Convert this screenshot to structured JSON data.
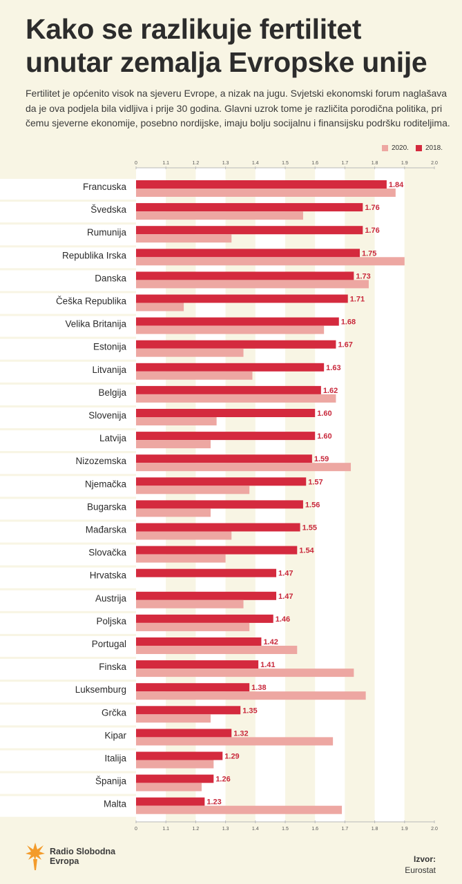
{
  "header": {
    "title_line1": "Kako se razlikuje fertilitet",
    "title_line2": "unutar zemalja Evropske unije",
    "subtitle": "Fertilitet je općenito visok na sjeveru Evrope, a nizak na jugu. Svjetski ekonomski forum naglašava da je ova podjela bila vidljiva i prije 30 godina. Glavni uzrok tome je različita porodična politika, pri čemu sjeverne ekonomije, posebno nordijske, imaju bolju socijalnu i finansijsku podršku roditeljima."
  },
  "legend": {
    "items": [
      {
        "label": "2020.",
        "color": "#eda7a2"
      },
      {
        "label": "2018.",
        "color": "#d42a3e"
      }
    ]
  },
  "footer": {
    "logo_line1": "Radio Slobodna",
    "logo_line2": "Evropa",
    "logo_color": "#f39b2b",
    "source_label": "Izvor:",
    "source_value": "Eurostat"
  },
  "chart_data": {
    "type": "bar",
    "orientation": "horizontal",
    "xlim": [
      1.0,
      2.0
    ],
    "x_ticks": [
      "0",
      "1.1",
      "1.2",
      "1.3",
      "1.4",
      "1.5",
      "1.6",
      "1.7",
      "1.8",
      "1.9",
      "2.0"
    ],
    "axis_break": true,
    "grid": "alternating vertical bands",
    "legend_position": "top-right",
    "categories": [
      "Francuska",
      "Švedska",
      "Rumunija",
      "Republika Irska",
      "Danska",
      "Češka Republika",
      "Velika Britanija",
      "Estonija",
      "Litvanija",
      "Belgija",
      "Slovenija",
      "Latvija",
      "Nizozemska",
      "Njemačka",
      "Bugarska",
      "Mađarska",
      "Slovačka",
      "Hrvatska",
      "Austrija",
      "Poljska",
      "Portugal",
      "Finska",
      "Luksemburg",
      "Grčka",
      "Kipar",
      "Italija",
      "Španija",
      "Malta"
    ],
    "series": [
      {
        "name": "2018.",
        "color": "#d42a3e",
        "values": [
          1.84,
          1.76,
          1.76,
          1.75,
          1.73,
          1.71,
          1.68,
          1.67,
          1.63,
          1.62,
          1.6,
          1.6,
          1.59,
          1.57,
          1.56,
          1.55,
          1.54,
          1.47,
          1.47,
          1.46,
          1.42,
          1.41,
          1.38,
          1.35,
          1.32,
          1.29,
          1.26,
          1.23
        ],
        "labels": [
          "1.84",
          "1.76",
          "1.76",
          "1.75",
          "1.73",
          "1.71",
          "1.68",
          "1.67",
          "1.63",
          "1.62",
          "1.60",
          "1.60",
          "1.59",
          "1.57",
          "1.56",
          "1.55",
          "1.54",
          "1.47",
          "1.47",
          "1.46",
          "1.42",
          "1.41",
          "1.38",
          "1.35",
          "1.32",
          "1.29",
          "1.26",
          "1.23"
        ]
      },
      {
        "name": "2020.",
        "color": "#eda7a2",
        "values": [
          1.87,
          1.56,
          1.32,
          1.9,
          1.78,
          1.16,
          1.63,
          1.36,
          1.39,
          1.67,
          1.27,
          1.25,
          1.72,
          1.38,
          1.25,
          1.32,
          1.3,
          null,
          1.36,
          1.38,
          1.54,
          1.73,
          1.77,
          1.25,
          1.66,
          1.26,
          1.22,
          1.69
        ]
      }
    ]
  }
}
